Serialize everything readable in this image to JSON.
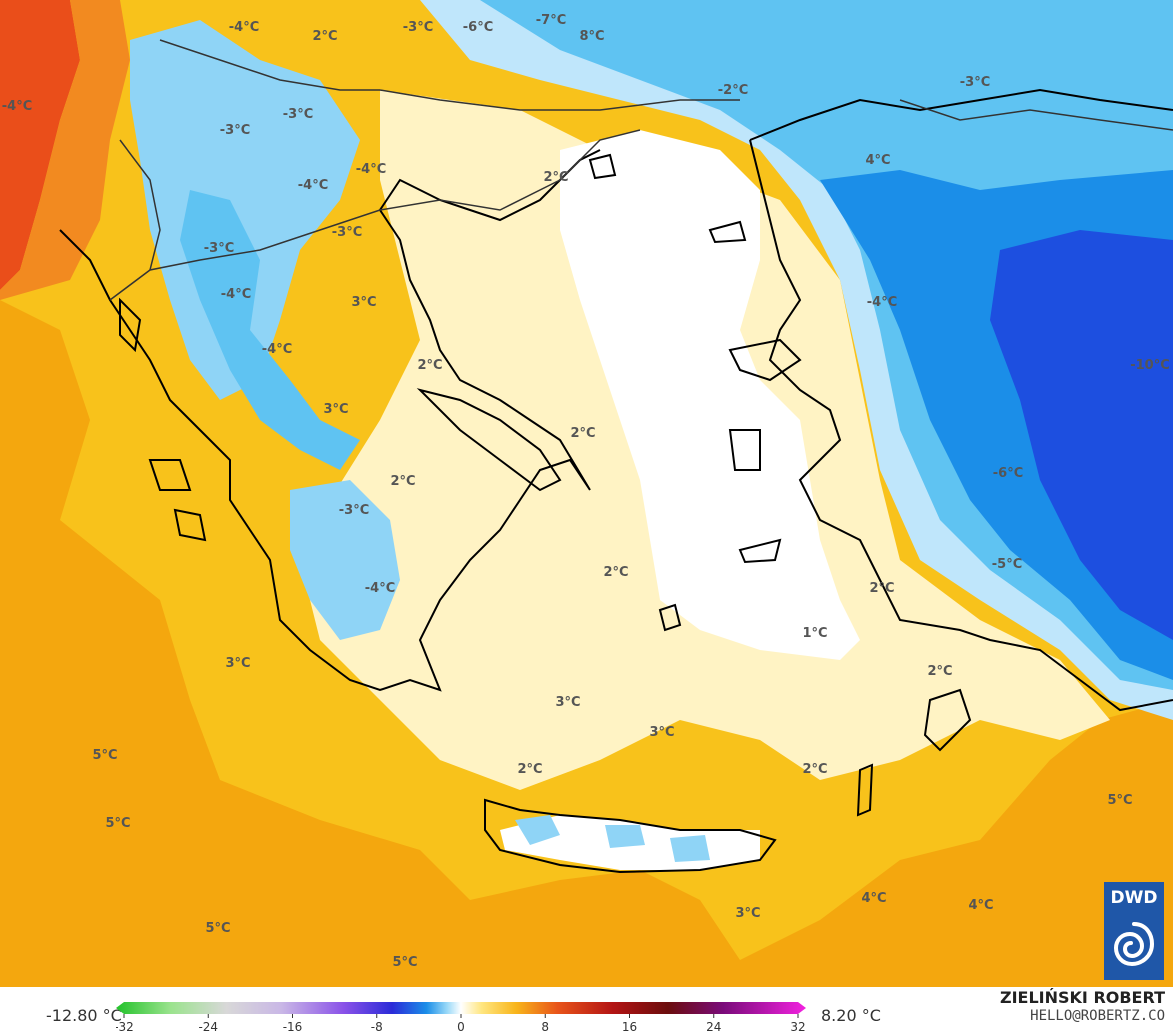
{
  "map": {
    "temperature_labels": [
      {
        "text": "-4°C",
        "region": "north-balkans"
      },
      {
        "text": "2°C",
        "region": "north-balkans"
      },
      {
        "text": "-3°C",
        "region": "north-balkans"
      },
      {
        "text": "-6°C",
        "region": "black-sea-west"
      },
      {
        "text": "-7°C",
        "region": "black-sea-west"
      },
      {
        "text": "8°C",
        "region": "adriatic"
      },
      {
        "text": "-4°C",
        "region": "serbia"
      },
      {
        "text": "-3°C",
        "region": "serbia"
      },
      {
        "text": "-3°C",
        "region": "bulgaria"
      },
      {
        "text": "-2°C",
        "region": "black-sea"
      },
      {
        "text": "-3°C",
        "region": "istanbul"
      },
      {
        "text": "4°C",
        "region": "macedonia"
      },
      {
        "text": "-4°C",
        "region": "kosovo"
      },
      {
        "text": "2°C",
        "region": "thrace"
      },
      {
        "text": "-4°C",
        "region": "north-macedonia"
      },
      {
        "text": "-3°C",
        "region": "albania"
      },
      {
        "text": "-3°C",
        "region": "albania"
      },
      {
        "text": "3°C",
        "region": "thessaly"
      },
      {
        "text": "-4°C",
        "region": "anatolia"
      },
      {
        "text": "-4°C",
        "region": "epirus"
      },
      {
        "text": "2°C",
        "region": "euboea"
      },
      {
        "text": "-10°C",
        "region": "central-anatolia"
      },
      {
        "text": "-4°C",
        "region": "central-greece"
      },
      {
        "text": "2°C",
        "region": "aegean"
      },
      {
        "text": "3°C",
        "region": "ionian"
      },
      {
        "text": "2°C",
        "region": "corinth"
      },
      {
        "text": "-6°C",
        "region": "anatolia-south"
      },
      {
        "text": "-3°C",
        "region": "peloponnese"
      },
      {
        "text": "2°C",
        "region": "cyclades"
      },
      {
        "text": "-5°C",
        "region": "taurus"
      },
      {
        "text": "-4°C",
        "region": "peloponnese-south"
      },
      {
        "text": "2°C",
        "region": "dodecanese"
      },
      {
        "text": "1°C",
        "region": "southeast-aegean"
      },
      {
        "text": "3°C",
        "region": "ionian-sea"
      },
      {
        "text": "2°C",
        "region": "rhodes"
      },
      {
        "text": "3°C",
        "region": "south-aegean"
      },
      {
        "text": "3°C",
        "region": "cretan-sea"
      },
      {
        "text": "5°C",
        "region": "ionian-west"
      },
      {
        "text": "2°C",
        "region": "kythira"
      },
      {
        "text": "2°C",
        "region": "karpathos"
      },
      {
        "text": "5°C",
        "region": "east-med"
      },
      {
        "text": "5°C",
        "region": "ionian-southwest"
      },
      {
        "text": "3°C",
        "region": "libyan-sea"
      },
      {
        "text": "4°C",
        "region": "levantine"
      },
      {
        "text": "4°C",
        "region": "levantine-east"
      },
      {
        "text": "5°C",
        "region": "southwest"
      },
      {
        "text": "5°C",
        "region": "south"
      }
    ],
    "logo": {
      "text": "DWD",
      "color": "#1f57a8"
    },
    "palette": {
      "sea_warm": "#f8c21b",
      "warm_orange": "#f4a70e",
      "hot": "#ea4e1a",
      "neutral": "#fff3c4",
      "zero": "#ffffff",
      "cold_light": "#bfe6fb",
      "cold_mid": "#5fc3f2",
      "cold_deep": "#1b8ee8",
      "cold_strong": "#1d4fe0"
    }
  },
  "legend": {
    "min_label": "-12.80 °C",
    "max_label": "8.20 °C",
    "ticks": [
      "-32",
      "-24",
      "-16",
      "-8",
      "0",
      "8",
      "16",
      "24",
      "32"
    ],
    "tick_values": [
      -32,
      -24,
      -16,
      -8,
      0,
      8,
      16,
      24,
      32
    ],
    "range": [
      -32,
      32
    ]
  },
  "credit": {
    "name": "ZIELIŃSKI ROBERT",
    "email": "HELLO@ROBERTZ.CO"
  }
}
